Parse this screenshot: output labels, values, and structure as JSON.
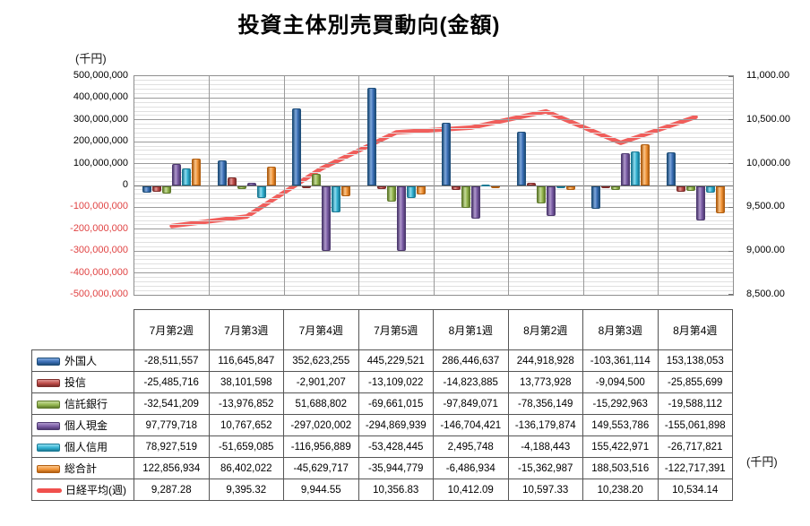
{
  "title": "投資主体別売買動向(金額)",
  "left_axis": {
    "unit_label": "(千円)",
    "min": -500000000,
    "max": 500000000,
    "major_step": 100000000,
    "minor_step": 20000000,
    "negative_label_color": "#e04343",
    "positive_label_color": "#000000"
  },
  "right_axis": {
    "unit_label": "(千円)",
    "min": 8500,
    "max": 11000,
    "major_step": 500
  },
  "chart_data": {
    "type": "bar",
    "title": "投資主体別売買動向(金額)",
    "categories": [
      "7月第2週",
      "7月第3週",
      "7月第4週",
      "7月第5週",
      "8月第1週",
      "8月第2週",
      "8月第3週",
      "8月第4週"
    ],
    "ylim_left": [
      -500000000,
      500000000
    ],
    "ylim_right": [
      8500,
      11000
    ],
    "grid": true,
    "legend_position": "table-left",
    "series": [
      {
        "name": "外国人",
        "type": "bar",
        "decimals": 0,
        "color": {
          "base": "#3a6db5",
          "light": "#7fa8dc",
          "dark": "#1f4e79"
        },
        "values": [
          -28511557,
          116645847,
          352623255,
          445229521,
          286446637,
          244918928,
          -103361114,
          153138053
        ]
      },
      {
        "name": "投信",
        "type": "bar",
        "decimals": 0,
        "color": {
          "base": "#be4b48",
          "light": "#e09694",
          "dark": "#7e2d2b"
        },
        "values": [
          -25485716,
          38101598,
          -2901207,
          -13109022,
          -14823885,
          13773928,
          -9094500,
          -25855699
        ]
      },
      {
        "name": "信託銀行",
        "type": "bar",
        "decimals": 0,
        "color": {
          "base": "#94b64e",
          "light": "#c6db9a",
          "dark": "#5f7a2c"
        },
        "values": [
          -32541209,
          -13976852,
          51688802,
          -69661015,
          -97849071,
          -78356149,
          -15292963,
          -19588112
        ]
      },
      {
        "name": "個人現金",
        "type": "bar",
        "decimals": 0,
        "color": {
          "base": "#7a5ca5",
          "light": "#af99cc",
          "dark": "#4e3a70"
        },
        "values": [
          97779718,
          10767652,
          -297020002,
          -294869939,
          -146704421,
          -136179874,
          149553786,
          -155061898
        ]
      },
      {
        "name": "個人信用",
        "type": "bar",
        "decimals": 0,
        "color": {
          "base": "#31b0d0",
          "light": "#8eddf0",
          "dark": "#1b7a94"
        },
        "values": [
          78927519,
          -51659085,
          -116956889,
          -53428445,
          2495748,
          -4188443,
          155422971,
          -26717821
        ]
      },
      {
        "name": "総合計",
        "type": "bar",
        "decimals": 0,
        "color": {
          "base": "#f29437",
          "light": "#fac488",
          "dark": "#b05e11"
        },
        "values": [
          122856934,
          86402022,
          -45629717,
          -35944779,
          -6486934,
          -15362987,
          188503516,
          -122717391
        ]
      },
      {
        "name": "日経平均(週)",
        "type": "line",
        "decimals": 2,
        "color": {
          "base": "#f0504d"
        },
        "values": [
          9287.28,
          9395.32,
          9944.55,
          10356.83,
          10412.09,
          10597.33,
          10238.2,
          10534.14
        ]
      }
    ]
  }
}
